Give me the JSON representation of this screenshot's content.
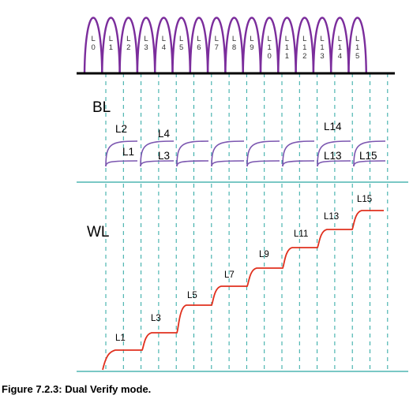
{
  "caption": "Figure 7.2.3: Dual Verify mode.",
  "colors": {
    "pulse": "#7b2d9c",
    "bitline": "#7b56b0",
    "wordline": "#e0301e",
    "guide": "#2aa7a2",
    "baseline": "#000000",
    "text": "#000000"
  },
  "pulses": {
    "tick_labels": [
      {
        "top": "L",
        "bottom": "0"
      },
      {
        "top": "L",
        "bottom": "1"
      },
      {
        "top": "L",
        "bottom": "2"
      },
      {
        "top": "L",
        "bottom": "3"
      },
      {
        "top": "L",
        "bottom": "4"
      },
      {
        "top": "L",
        "bottom": "5"
      },
      {
        "top": "L",
        "bottom": "6"
      },
      {
        "top": "L",
        "bottom": "7"
      },
      {
        "top": "L",
        "bottom": "8"
      },
      {
        "top": "L",
        "bottom": "9"
      },
      {
        "top": "L\n1",
        "bottom": "0"
      },
      {
        "top": "L\n1",
        "bottom": "1"
      },
      {
        "top": "L\n1",
        "bottom": "2"
      },
      {
        "top": "L\n1",
        "bottom": "3"
      },
      {
        "top": "L\n1",
        "bottom": "4"
      },
      {
        "top": "L\n1",
        "bottom": "5"
      }
    ]
  },
  "bitline": {
    "label": "BL",
    "level_labels": [
      "L2",
      "L4",
      "L1",
      "L3",
      "L14",
      "L13",
      "L15"
    ]
  },
  "wordline": {
    "label": "WL",
    "step_labels": [
      "L1",
      "L3",
      "L5",
      "L7",
      "L9",
      "L11",
      "L13",
      "L15"
    ]
  }
}
